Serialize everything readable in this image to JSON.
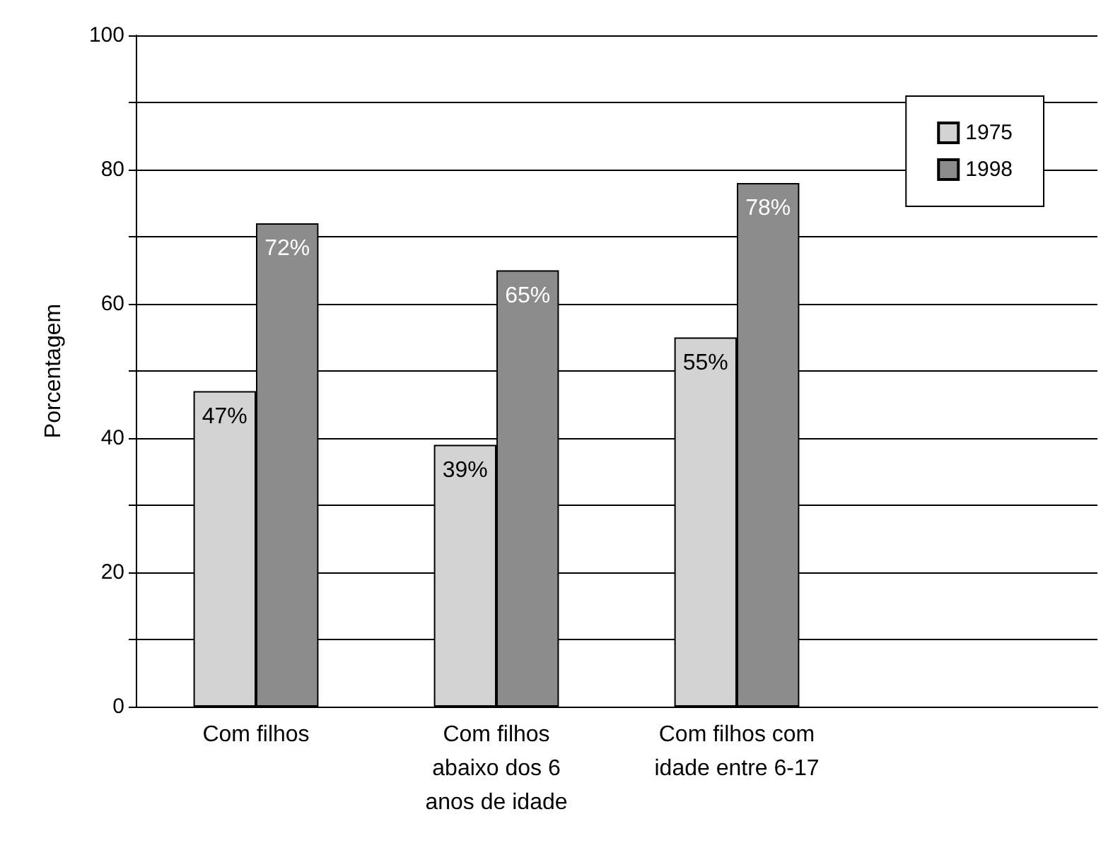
{
  "chart_data": {
    "type": "bar",
    "ylabel": "Porcentagem",
    "categories": [
      "Com filhos",
      "Com filhos\nabaixo dos 6\nanos de idade",
      "Com filhos com\nidade entre 6-17",
      null
    ],
    "series": [
      {
        "name": "1975",
        "color": "#d3d3d3",
        "values": [
          47,
          39,
          55,
          null
        ],
        "value_labels": [
          "47%",
          "39%",
          "55%",
          null
        ]
      },
      {
        "name": "1998",
        "color": "#8c8c8c",
        "values": [
          72,
          65,
          78,
          null
        ],
        "value_labels": [
          "72%",
          "65%",
          "78%",
          null
        ]
      }
    ],
    "ylim": [
      0,
      100
    ],
    "yticks": [
      0,
      {
        "value": 10,
        "label": null
      },
      20,
      {
        "value": 30,
        "label": null
      },
      40,
      {
        "value": 50,
        "label": null
      },
      60,
      {
        "value": 70,
        "label": null
      },
      80,
      {
        "value": 90,
        "label": null
      },
      100
    ],
    "grid": "y",
    "legend": "top right"
  }
}
